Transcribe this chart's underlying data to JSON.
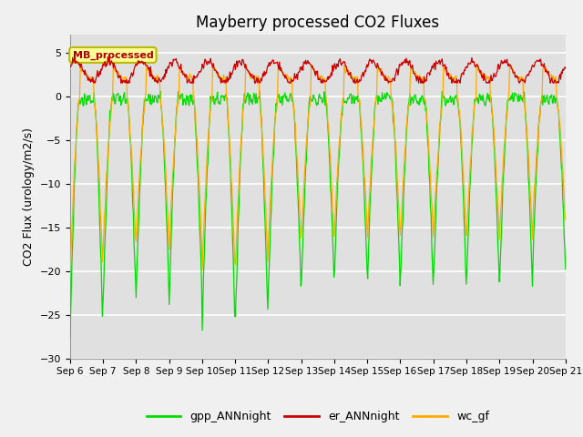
{
  "title": "Mayberry processed CO2 Fluxes",
  "ylabel": "CO2 Flux (urology/m2/s)",
  "xlim_start": 0,
  "xlim_end": 15,
  "ylim": [
    -30,
    7
  ],
  "yticks": [
    -30,
    -25,
    -20,
    -15,
    -10,
    -5,
    0,
    5
  ],
  "xtick_labels": [
    "Sep 6",
    "Sep 7",
    "Sep 8",
    "Sep 9",
    "Sep 10",
    "Sep 11",
    "Sep 12",
    "Sep 13",
    "Sep 14",
    "Sep 15",
    "Sep 16",
    "Sep 17",
    "Sep 18",
    "Sep 19",
    "Sep 20",
    "Sep 21"
  ],
  "fig_bg_color": "#f0f0f0",
  "plot_bg_color": "#e0e0e0",
  "grid_color": "#ffffff",
  "colors": {
    "gpp": "#00dd00",
    "er": "#cc0000",
    "wc": "#ffaa00"
  },
  "legend_labels": [
    "gpp_ANNnight",
    "er_ANNnight",
    "wc_gf"
  ],
  "watermark_text": "MB_processed",
  "watermark_color": "#aa0000",
  "watermark_bg": "#ffff99",
  "title_fontsize": 12,
  "axis_fontsize": 9,
  "tick_fontsize": 8
}
